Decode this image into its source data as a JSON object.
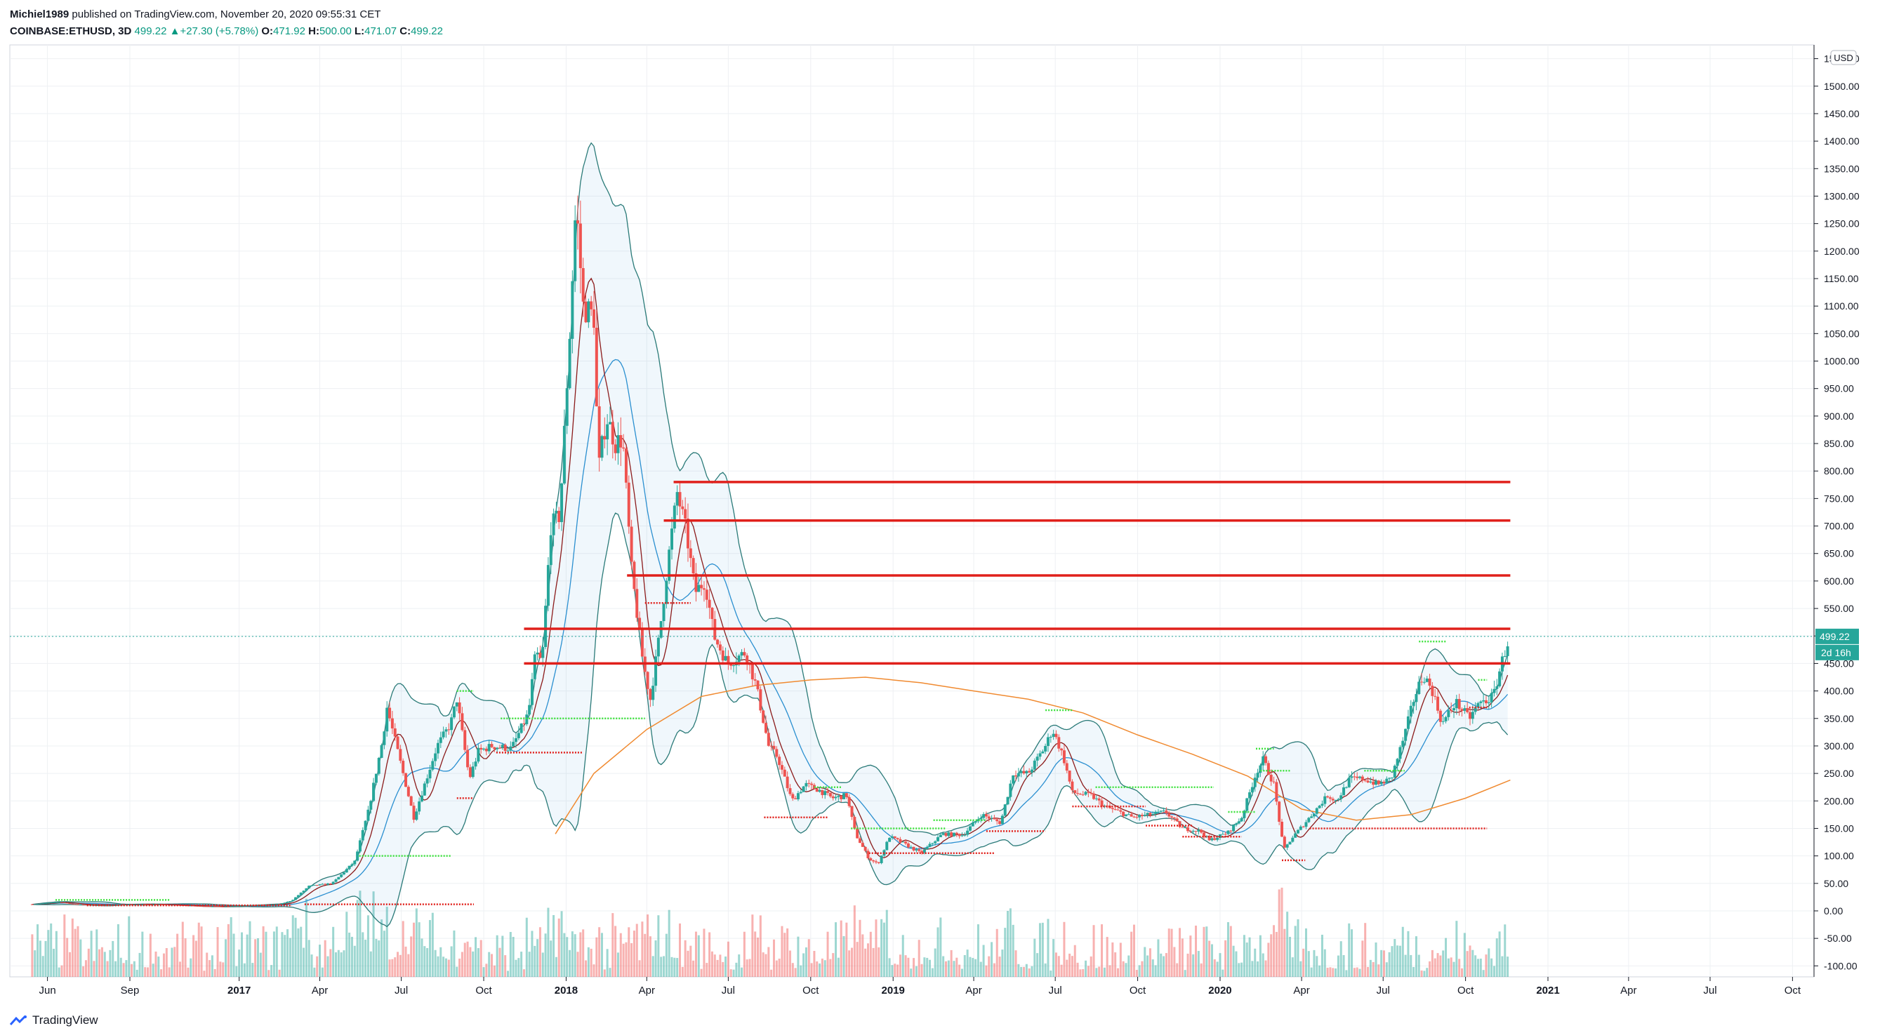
{
  "header": {
    "author": "Michiel1989",
    "published": "published on TradingView.com, November 20, 2020 09:55:31 CET",
    "symbol": "COINBASE:ETHUSD, 3D",
    "last": "499.22",
    "change": "+27.30 (+5.78%)",
    "o_label": "O:",
    "o_val": "471.92",
    "h_label": "H:",
    "h_val": "500.00",
    "l_label": "L:",
    "l_val": "471.07",
    "c_label": "C:",
    "c_val": "499.22"
  },
  "footer": {
    "brand": "TradingView"
  },
  "colors": {
    "up": "#26a69a",
    "down": "#ef5350",
    "resistance": "#e0201b",
    "bb_line": "#2a7a78",
    "ma_fast": "#8b1a1a",
    "ma_mid": "#2a8fd0",
    "ma_slow": "#f08a30",
    "green_marker": "#3ee23e",
    "red_marker": "#e0201b"
  },
  "chart_data": {
    "type": "candlestick",
    "currency": "USD",
    "price_label": "499.22",
    "countdown_label": "2d 16h",
    "y_ticks": [
      "1550.00",
      "1500.00",
      "1450.00",
      "1400.00",
      "1350.00",
      "1300.00",
      "1250.00",
      "1200.00",
      "1150.00",
      "1100.00",
      "1050.00",
      "1000.00",
      "950.00",
      "900.00",
      "850.00",
      "800.00",
      "750.00",
      "700.00",
      "650.00",
      "600.00",
      "550.00",
      "500.00",
      "450.00",
      "400.00",
      "350.00",
      "300.00",
      "250.00",
      "200.00",
      "150.00",
      "100.00",
      "50.00",
      "0.00",
      "-50.00",
      "-100.00"
    ],
    "y_range": [
      -120,
      1575
    ],
    "x_ticks": [
      {
        "label": "Jun",
        "date": "2016-06-01"
      },
      {
        "label": "Sep",
        "date": "2016-09-01"
      },
      {
        "label": "2017",
        "date": "2017-01-01"
      },
      {
        "label": "Apr",
        "date": "2017-04-01"
      },
      {
        "label": "Jul",
        "date": "2017-07-01"
      },
      {
        "label": "Oct",
        "date": "2017-10-01"
      },
      {
        "label": "2018",
        "date": "2018-01-01"
      },
      {
        "label": "Apr",
        "date": "2018-04-01"
      },
      {
        "label": "Jul",
        "date": "2018-07-01"
      },
      {
        "label": "Oct",
        "date": "2018-10-01"
      },
      {
        "label": "2019",
        "date": "2019-01-01"
      },
      {
        "label": "Apr",
        "date": "2019-04-01"
      },
      {
        "label": "Jul",
        "date": "2019-07-01"
      },
      {
        "label": "Oct",
        "date": "2019-10-01"
      },
      {
        "label": "2020",
        "date": "2020-01-01"
      },
      {
        "label": "Apr",
        "date": "2020-04-01"
      },
      {
        "label": "Jul",
        "date": "2020-07-01"
      },
      {
        "label": "Oct",
        "date": "2020-10-01"
      },
      {
        "label": "2021",
        "date": "2021-01-01"
      },
      {
        "label": "Apr",
        "date": "2021-04-01"
      },
      {
        "label": "Jul",
        "date": "2021-07-01"
      },
      {
        "label": "Oct",
        "date": "2021-10-01"
      }
    ],
    "x_range": [
      "2016-04-20",
      "2021-10-25"
    ],
    "price_path": [
      [
        "2016-05-15",
        12
      ],
      [
        "2016-06-15",
        16
      ],
      [
        "2016-07-01",
        12
      ],
      [
        "2016-08-01",
        11
      ],
      [
        "2016-09-01",
        12
      ],
      [
        "2016-10-01",
        12
      ],
      [
        "2016-11-15",
        9
      ],
      [
        "2016-12-15",
        8
      ],
      [
        "2017-01-15",
        10
      ],
      [
        "2017-02-15",
        12
      ],
      [
        "2017-03-01",
        19
      ],
      [
        "2017-03-20",
        45
      ],
      [
        "2017-04-15",
        50
      ],
      [
        "2017-05-10",
        90
      ],
      [
        "2017-05-25",
        180
      ],
      [
        "2017-06-10",
        310
      ],
      [
        "2017-06-15",
        370
      ],
      [
        "2017-06-30",
        270
      ],
      [
        "2017-07-15",
        170
      ],
      [
        "2017-07-25",
        220
      ],
      [
        "2017-08-10",
        300
      ],
      [
        "2017-08-25",
        340
      ],
      [
        "2017-09-01",
        385
      ],
      [
        "2017-09-15",
        240
      ],
      [
        "2017-09-25",
        290
      ],
      [
        "2017-10-10",
        300
      ],
      [
        "2017-11-01",
        295
      ],
      [
        "2017-11-20",
        360
      ],
      [
        "2017-11-28",
        470
      ],
      [
        "2017-12-05",
        450
      ],
      [
        "2017-12-15",
        700
      ],
      [
        "2017-12-25",
        720
      ],
      [
        "2018-01-05",
        1050
      ],
      [
        "2018-01-12",
        1290
      ],
      [
        "2018-01-20",
        1100
      ],
      [
        "2018-02-01",
        1080
      ],
      [
        "2018-02-06",
        800
      ],
      [
        "2018-02-15",
        900
      ],
      [
        "2018-02-25",
        850
      ],
      [
        "2018-03-05",
        860
      ],
      [
        "2018-03-15",
        620
      ],
      [
        "2018-03-28",
        450
      ],
      [
        "2018-04-05",
        385
      ],
      [
        "2018-04-15",
        500
      ],
      [
        "2018-04-25",
        640
      ],
      [
        "2018-05-05",
        760
      ],
      [
        "2018-05-15",
        690
      ],
      [
        "2018-05-25",
        580
      ],
      [
        "2018-06-05",
        600
      ],
      [
        "2018-06-15",
        500
      ],
      [
        "2018-06-30",
        450
      ],
      [
        "2018-07-20",
        470
      ],
      [
        "2018-08-01",
        410
      ],
      [
        "2018-08-15",
        300
      ],
      [
        "2018-08-25",
        280
      ],
      [
        "2018-09-10",
        200
      ],
      [
        "2018-09-25",
        230
      ],
      [
        "2018-10-10",
        220
      ],
      [
        "2018-10-25",
        205
      ],
      [
        "2018-11-10",
        210
      ],
      [
        "2018-11-20",
        140
      ],
      [
        "2018-12-05",
        95
      ],
      [
        "2018-12-15",
        85
      ],
      [
        "2018-12-28",
        135
      ],
      [
        "2019-01-10",
        125
      ],
      [
        "2019-02-01",
        105
      ],
      [
        "2019-02-25",
        140
      ],
      [
        "2019-03-20",
        138
      ],
      [
        "2019-04-10",
        175
      ],
      [
        "2019-05-01",
        160
      ],
      [
        "2019-05-15",
        250
      ],
      [
        "2019-06-01",
        250
      ],
      [
        "2019-06-20",
        300
      ],
      [
        "2019-06-28",
        330
      ],
      [
        "2019-07-10",
        280
      ],
      [
        "2019-07-20",
        215
      ],
      [
        "2019-08-10",
        210
      ],
      [
        "2019-08-25",
        190
      ],
      [
        "2019-09-10",
        180
      ],
      [
        "2019-09-25",
        170
      ],
      [
        "2019-10-15",
        175
      ],
      [
        "2019-11-01",
        180
      ],
      [
        "2019-11-20",
        150
      ],
      [
        "2019-12-10",
        145
      ],
      [
        "2019-12-20",
        128
      ],
      [
        "2020-01-10",
        143
      ],
      [
        "2020-01-25",
        170
      ],
      [
        "2020-02-10",
        250
      ],
      [
        "2020-02-18",
        275
      ],
      [
        "2020-03-01",
        230
      ],
      [
        "2020-03-12",
        110
      ],
      [
        "2020-03-20",
        130
      ],
      [
        "2020-04-10",
        170
      ],
      [
        "2020-04-30",
        210
      ],
      [
        "2020-05-10",
        200
      ],
      [
        "2020-05-25",
        240
      ],
      [
        "2020-06-10",
        240
      ],
      [
        "2020-06-25",
        230
      ],
      [
        "2020-07-10",
        240
      ],
      [
        "2020-07-25",
        320
      ],
      [
        "2020-08-05",
        390
      ],
      [
        "2020-08-15",
        430
      ],
      [
        "2020-08-25",
        400
      ],
      [
        "2020-09-05",
        340
      ],
      [
        "2020-09-20",
        380
      ],
      [
        "2020-10-05",
        350
      ],
      [
        "2020-10-15",
        375
      ],
      [
        "2020-11-01",
        390
      ],
      [
        "2020-11-10",
        450
      ],
      [
        "2020-11-19",
        499
      ]
    ],
    "resistance_levels": [
      {
        "price": 780,
        "from": "2018-05-01",
        "to": "2020-11-20"
      },
      {
        "price": 710,
        "from": "2018-04-20",
        "to": "2020-11-20"
      },
      {
        "price": 610,
        "from": "2018-03-10",
        "to": "2020-11-20"
      },
      {
        "price": 513,
        "from": "2017-11-15",
        "to": "2020-11-20"
      },
      {
        "price": 450,
        "from": "2017-11-15",
        "to": "2020-11-20"
      }
    ],
    "ma_slow_path": [
      [
        "2017-12-20",
        140
      ],
      [
        "2018-02-01",
        250
      ],
      [
        "2018-04-01",
        330
      ],
      [
        "2018-06-01",
        390
      ],
      [
        "2018-08-01",
        410
      ],
      [
        "2018-10-01",
        420
      ],
      [
        "2018-12-01",
        425
      ],
      [
        "2019-02-01",
        415
      ],
      [
        "2019-04-01",
        400
      ],
      [
        "2019-06-01",
        385
      ],
      [
        "2019-08-01",
        360
      ],
      [
        "2019-10-01",
        320
      ],
      [
        "2019-12-01",
        285
      ],
      [
        "2020-02-01",
        245
      ],
      [
        "2020-04-01",
        185
      ],
      [
        "2020-06-01",
        165
      ],
      [
        "2020-08-01",
        175
      ],
      [
        "2020-10-01",
        205
      ],
      [
        "2020-11-20",
        238
      ]
    ]
  }
}
